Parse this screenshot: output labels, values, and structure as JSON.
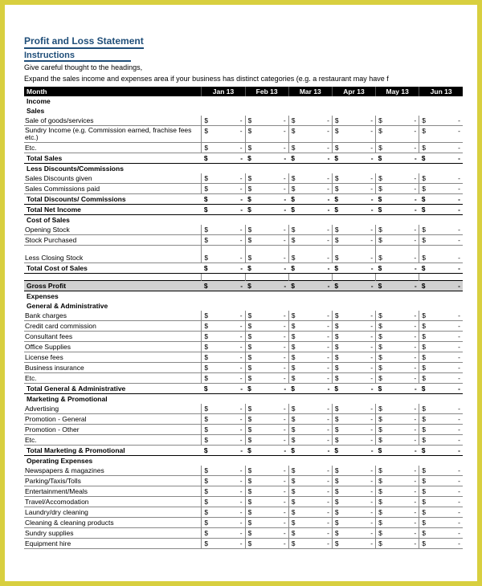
{
  "header": {
    "title": "Profit and Loss Statement",
    "subtitle": "Instructions",
    "line1": "Give careful thought to the headings,",
    "line2": "Expand the sales income and expenses area if your business has distinct categories (e.g. a restaurant may have f"
  },
  "months": [
    "Jan 13",
    "Feb 13",
    "Mar 13",
    "Apr 13",
    "May 13",
    "Jun 13"
  ],
  "month_label": "Month",
  "currency": "$",
  "dash": "-",
  "sections": {
    "income": "Income",
    "sales": "Sales",
    "sale_goods": "Sale of goods/services",
    "sundry": "Sundry Income (e.g. Commission earned, frachise fees etc.)",
    "etc": "Etc.",
    "total_sales": "Total Sales",
    "less_disc_hdr": "Less Discounts/Commissions",
    "sales_disc_given": "Sales Discounts given",
    "sales_comm_paid": "Sales Commissions paid",
    "total_disc": "Total Discounts/ Commissions",
    "total_net_income": "Total Net Income",
    "cost_of_sales": "Cost of Sales",
    "opening_stock": "Opening Stock",
    "stock_purchased": "Stock Purchased",
    "less_closing": "Less Closing Stock",
    "total_cost_sales": "Total Cost of Sales",
    "gross_profit": "Gross Profit",
    "expenses": "Expenses",
    "gen_admin": "General & Administrative",
    "bank": "Bank charges",
    "cc": "Credit card commission",
    "consultant": "Consultant fees",
    "office": "Office Supplies",
    "license": "License fees",
    "bus_ins": "Business insurance",
    "total_gen_admin": "Total General & Administrative",
    "mkt_promo": "Marketing & Promotional",
    "advertising": "Advertising",
    "promo_gen": "Promotion - General",
    "promo_other": "Promotion - Other",
    "total_mkt": "Total Marketing & Promotional",
    "op_exp": "Operating Expenses",
    "newspapers": "Newspapers & magazines",
    "parking": "Parking/Taxis/Tolls",
    "entertain": "Entertainment/Meals",
    "travel": "Travel/Accomodation",
    "laundry": "Laundry/dry cleaning",
    "cleaning": "Cleaning & cleaning products",
    "sundry_supp": "Sundry supplies",
    "equipment": "Equipment hire"
  }
}
